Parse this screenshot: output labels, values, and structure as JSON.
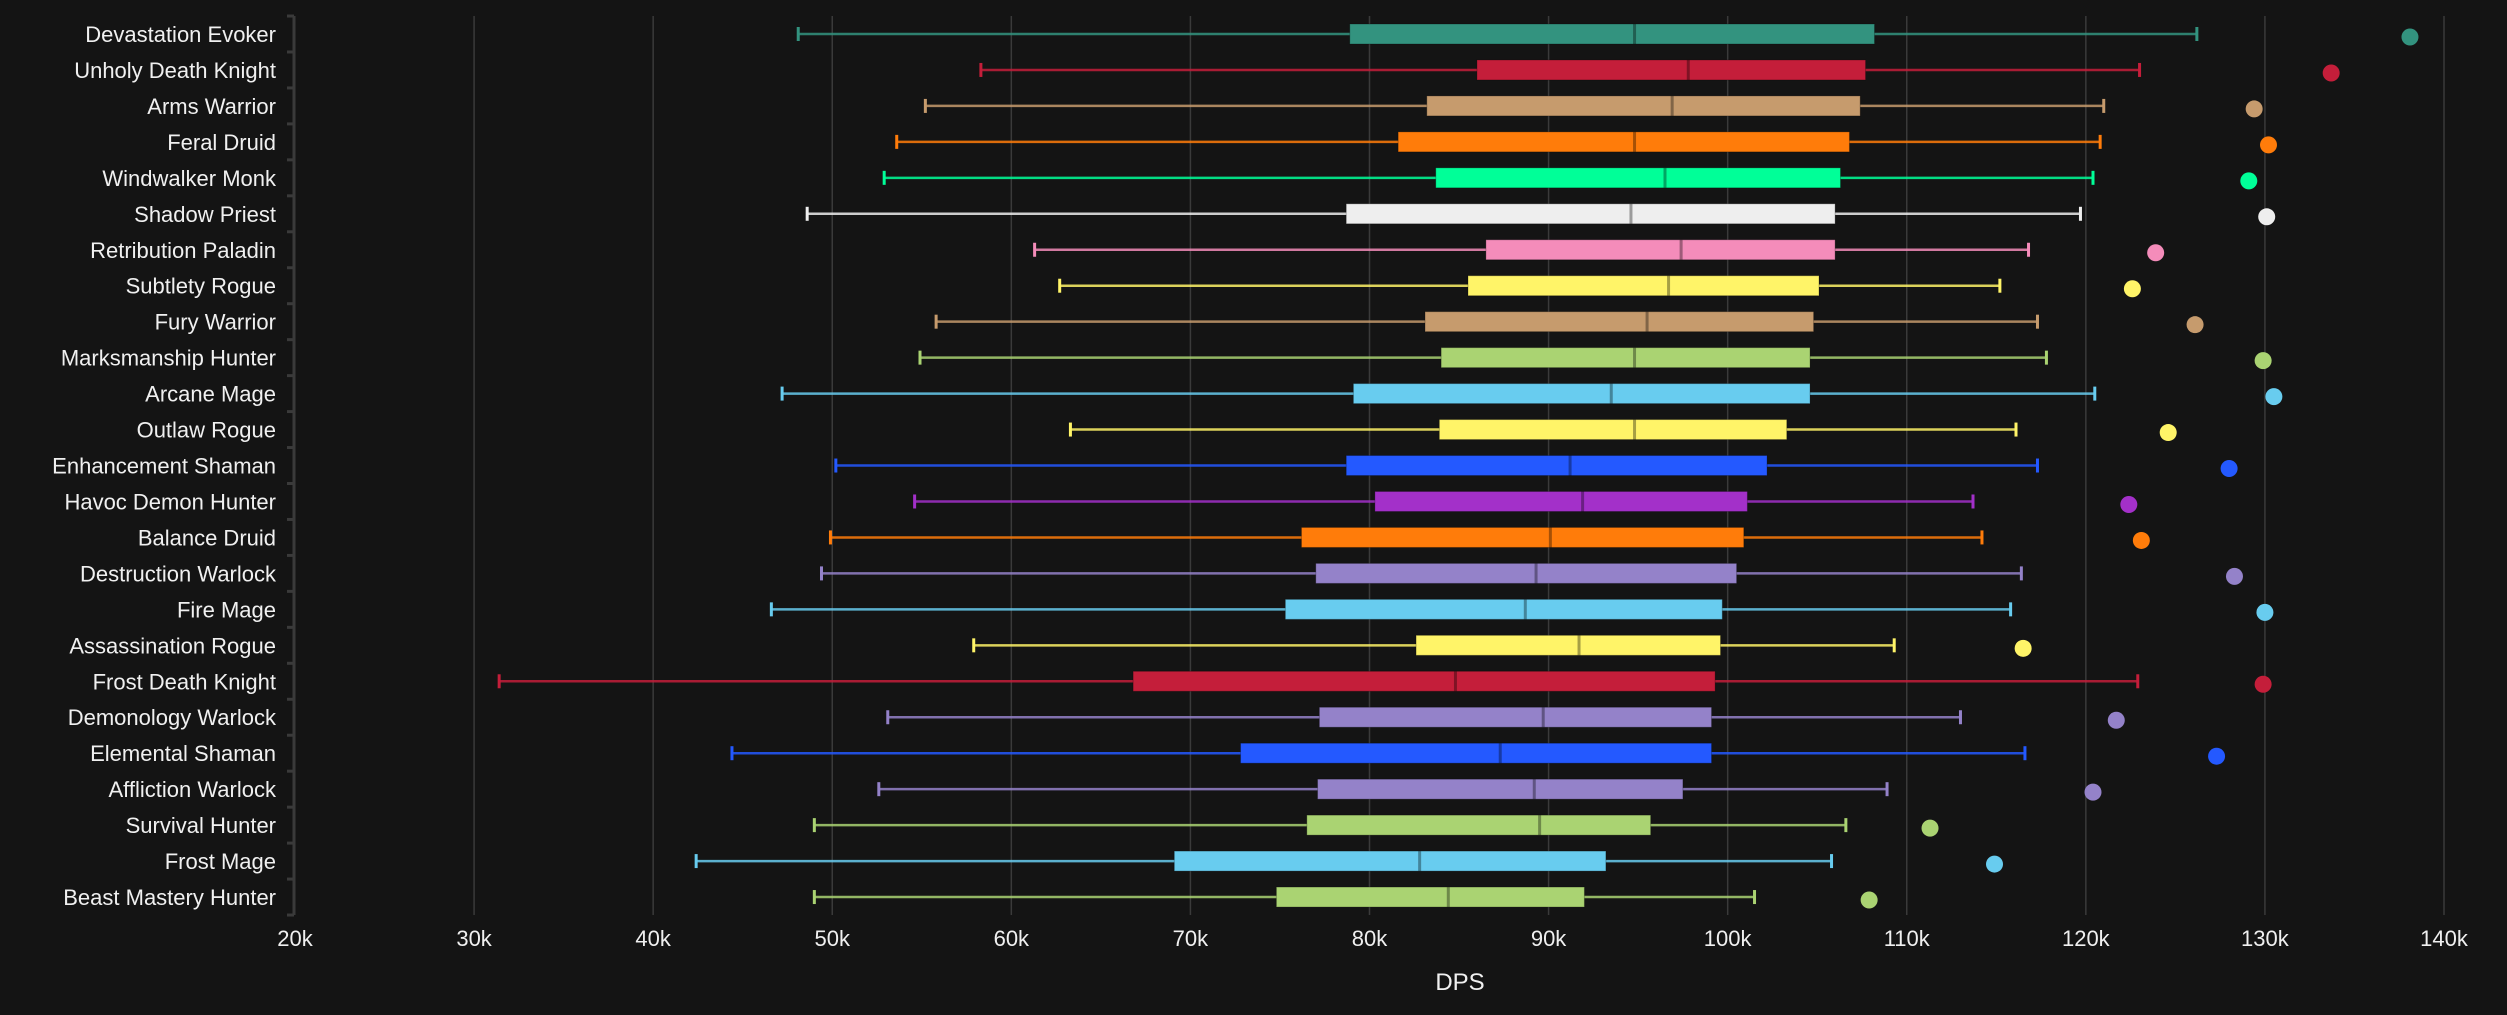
{
  "chart_data": {
    "type": "boxplot",
    "title": "",
    "xlabel": "DPS",
    "ylabel": "",
    "xlim": [
      20000,
      140000
    ],
    "x_ticks": [
      20000,
      30000,
      40000,
      50000,
      60000,
      70000,
      80000,
      90000,
      100000,
      110000,
      120000,
      130000,
      140000
    ],
    "x_tick_labels": [
      "20k",
      "30k",
      "40k",
      "50k",
      "60k",
      "70k",
      "80k",
      "90k",
      "100k",
      "110k",
      "120k",
      "130k",
      "140k"
    ],
    "grid": "vertical",
    "series": [
      {
        "name": "Devastation Evoker",
        "color": "#33937f",
        "min": 48100,
        "q1": 78900,
        "median": 94800,
        "q3": 108200,
        "max": 126200,
        "outlier": 138100
      },
      {
        "name": "Unholy Death Knight",
        "color": "#c41e3a",
        "min": 58300,
        "q1": 86000,
        "median": 97800,
        "q3": 107700,
        "max": 123000,
        "outlier": 133700
      },
      {
        "name": "Arms Warrior",
        "color": "#c69b6d",
        "min": 55200,
        "q1": 83200,
        "median": 96900,
        "q3": 107400,
        "max": 121000,
        "outlier": 129400
      },
      {
        "name": "Feral Druid",
        "color": "#ff7c0a",
        "min": 53600,
        "q1": 81600,
        "median": 94800,
        "q3": 106800,
        "max": 120800,
        "outlier": 130200
      },
      {
        "name": "Windwalker Monk",
        "color": "#00ff98",
        "min": 52900,
        "q1": 83700,
        "median": 96500,
        "q3": 106300,
        "max": 120400,
        "outlier": 129100
      },
      {
        "name": "Shadow Priest",
        "color": "#eeeeee",
        "min": 48600,
        "q1": 78700,
        "median": 94600,
        "q3": 106000,
        "max": 119700,
        "outlier": 130100
      },
      {
        "name": "Retribution Paladin",
        "color": "#f48cba",
        "min": 61300,
        "q1": 86500,
        "median": 97400,
        "q3": 106000,
        "max": 116800,
        "outlier": 123900
      },
      {
        "name": "Subtlety Rogue",
        "color": "#fff468",
        "min": 62700,
        "q1": 85500,
        "median": 96700,
        "q3": 105100,
        "max": 115200,
        "outlier": 122600
      },
      {
        "name": "Fury Warrior",
        "color": "#c69b6d",
        "min": 55800,
        "q1": 83100,
        "median": 95500,
        "q3": 104800,
        "max": 117300,
        "outlier": 126100
      },
      {
        "name": "Marksmanship Hunter",
        "color": "#aad372",
        "min": 54900,
        "q1": 84000,
        "median": 94800,
        "q3": 104600,
        "max": 117800,
        "outlier": 129900
      },
      {
        "name": "Arcane Mage",
        "color": "#68ccef",
        "min": 47200,
        "q1": 79100,
        "median": 93500,
        "q3": 104600,
        "max": 120500,
        "outlier": 130500
      },
      {
        "name": "Outlaw Rogue",
        "color": "#fff468",
        "min": 63300,
        "q1": 83900,
        "median": 94800,
        "q3": 103300,
        "max": 116100,
        "outlier": 124600
      },
      {
        "name": "Enhancement Shaman",
        "color": "#2459ff",
        "min": 50200,
        "q1": 78700,
        "median": 91200,
        "q3": 102200,
        "max": 117300,
        "outlier": 128000
      },
      {
        "name": "Havoc Demon Hunter",
        "color": "#a330c9",
        "min": 54600,
        "q1": 80300,
        "median": 91900,
        "q3": 101100,
        "max": 113700,
        "outlier": 122400
      },
      {
        "name": "Balance Druid",
        "color": "#ff7c0a",
        "min": 49900,
        "q1": 76200,
        "median": 90100,
        "q3": 100900,
        "max": 114200,
        "outlier": 123100
      },
      {
        "name": "Destruction Warlock",
        "color": "#9482c9",
        "min": 49400,
        "q1": 77000,
        "median": 89300,
        "q3": 100500,
        "max": 116400,
        "outlier": 128300
      },
      {
        "name": "Fire Mage",
        "color": "#68ccef",
        "min": 46600,
        "q1": 75300,
        "median": 88700,
        "q3": 99700,
        "max": 115800,
        "outlier": 130000
      },
      {
        "name": "Assassination Rogue",
        "color": "#fff468",
        "min": 57900,
        "q1": 82600,
        "median": 91700,
        "q3": 99600,
        "max": 109300,
        "outlier": 116500
      },
      {
        "name": "Frost Death Knight",
        "color": "#c41e3a",
        "min": 31400,
        "q1": 66800,
        "median": 84800,
        "q3": 99300,
        "max": 122900,
        "outlier": 129900
      },
      {
        "name": "Demonology Warlock",
        "color": "#9482c9",
        "min": 53100,
        "q1": 77200,
        "median": 89700,
        "q3": 99100,
        "max": 113000,
        "outlier": 121700
      },
      {
        "name": "Elemental Shaman",
        "color": "#2459ff",
        "min": 44400,
        "q1": 72800,
        "median": 87300,
        "q3": 99100,
        "max": 116600,
        "outlier": 127300
      },
      {
        "name": "Affliction Warlock",
        "color": "#9482c9",
        "min": 52600,
        "q1": 77100,
        "median": 89200,
        "q3": 97500,
        "max": 108900,
        "outlier": 120400
      },
      {
        "name": "Survival Hunter",
        "color": "#aad372",
        "min": 49000,
        "q1": 76500,
        "median": 89500,
        "q3": 95700,
        "max": 106600,
        "outlier": 111300
      },
      {
        "name": "Frost Mage",
        "color": "#68ccef",
        "min": 42400,
        "q1": 69100,
        "median": 82800,
        "q3": 93200,
        "max": 105800,
        "outlier": 114900
      },
      {
        "name": "Beast Mastery Hunter",
        "color": "#aad372",
        "min": 49000,
        "q1": 74800,
        "median": 84400,
        "q3": 92000,
        "max": 101500,
        "outlier": 107900
      }
    ]
  }
}
